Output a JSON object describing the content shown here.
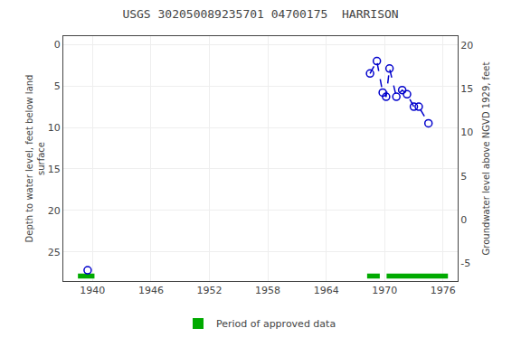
{
  "chart_data": {
    "type": "line",
    "title": "USGS 302050089235701 04700175  HARRISON",
    "ylabel": "Depth to water level, feet below land\nsurface",
    "y2label": "Groundwater level above NGVD 1929, feet",
    "x": [
      1939.5,
      null,
      1968.5,
      1969.2,
      1969.8,
      1970.15,
      1970.5,
      1971.2,
      1971.8,
      1972.3,
      1973.0,
      1973.5,
      1974.5
    ],
    "series": [
      {
        "values": [
          27.2,
          null,
          3.5,
          2.0,
          5.8,
          6.3,
          2.9,
          6.3,
          5.5,
          6.0,
          7.5,
          7.5,
          9.5
        ],
        "color": "#0000cc",
        "line_style": "dashed",
        "marker": "open_circle"
      },
      {
        "name": "Period of approved data",
        "type": "bar",
        "orientation": "horizontal",
        "color": "#00aa00",
        "y": 27.9,
        "height": 0.6,
        "start": [
          1938.5,
          1968.2,
          1970.2
        ],
        "end": [
          1940.2,
          1969.5,
          1976.5
        ]
      }
    ],
    "xlim": [
      1937.0,
      1977.5
    ],
    "xticks": [
      1940,
      1946,
      1952,
      1958,
      1964,
      1970,
      1976
    ],
    "ylim": [
      28.5,
      -1.0
    ],
    "yticks": [
      0,
      5,
      10,
      15,
      20,
      25
    ],
    "y2lim": [
      -7.0,
      21.0
    ],
    "y2ticks": [
      -5,
      0,
      5,
      10,
      15,
      20
    ],
    "grid": true
  }
}
